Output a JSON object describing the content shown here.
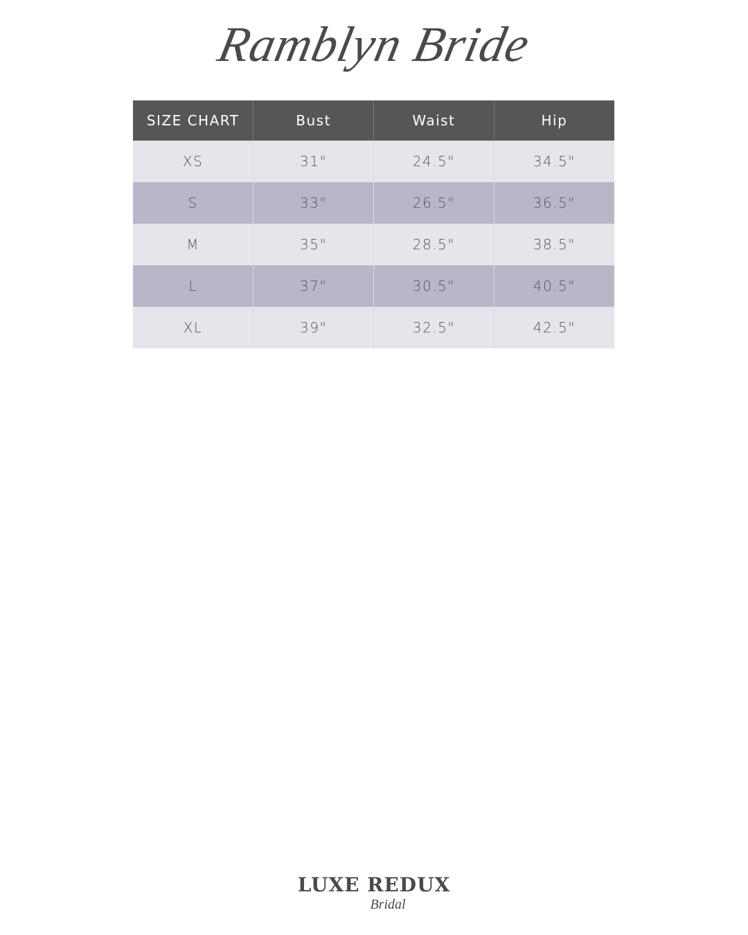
{
  "title": "Ramblyn Bride",
  "table": {
    "headers": [
      "SIZE CHART",
      "Bust",
      "Waist",
      "Hip"
    ],
    "rows": [
      [
        "XS",
        "31\"",
        "24.5\"",
        "34.5\""
      ],
      [
        "S",
        "33\"",
        "26.5\"",
        "36.5\""
      ],
      [
        "M",
        "35\"",
        "28.5\"",
        "38.5\""
      ],
      [
        "L",
        "37\"",
        "30.5\"",
        "40.5\""
      ],
      [
        "XL",
        "39\"",
        "32.5\"",
        "42.5\""
      ]
    ]
  },
  "colors": {
    "header": "#565656",
    "row_light": "#e6e5ec",
    "row_dark": "#b8b7ca"
  },
  "footer_logo": {
    "main": "LUXE REDUX",
    "sub": "Bridal"
  }
}
